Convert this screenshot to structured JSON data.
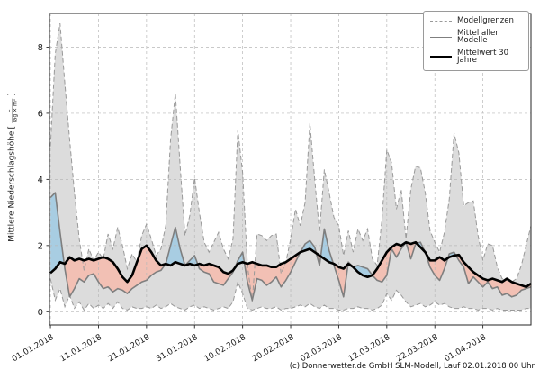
{
  "figure": {
    "footer_credit": "(c) Donnerwetter.de GmbH SLM-Modell, Lauf 02.01.2018 00 Uhr"
  },
  "legend": {
    "items": [
      {
        "label": "Modellgrenzen",
        "style": "dashed-gray"
      },
      {
        "label": "Mittel aller Modelle",
        "style": "solid-gray"
      },
      {
        "label": "Mittelwert 30 Jahre",
        "style": "solid-black"
      }
    ]
  },
  "axis": {
    "ylabel": "Mittlere Niederschlagshöhe",
    "unit_open": "[",
    "unit_numerator": "L",
    "unit_denominator": "Tag × m²",
    "unit_close": "]"
  },
  "chart_data": {
    "type": "line",
    "title": "",
    "xlabel": "",
    "ylabel": "Mittlere Niederschlagshöhe [L/(Tag × m²)]",
    "x_unit": "Tage ab 01.01.2018 (Index = Tag)",
    "x_tick_days": [
      0,
      10,
      20,
      30,
      40,
      50,
      60,
      70,
      80,
      90
    ],
    "x_tick_labels": [
      "01.01.2018",
      "11.01.2018",
      "21.01.2018",
      "31.01.2018",
      "10.02.2018",
      "20.02.2018",
      "02.03.2018",
      "12.03.2018",
      "22.03.2018",
      "01.04.2018"
    ],
    "y_ticks": [
      0,
      2,
      4,
      6,
      8
    ],
    "xlim": [
      -0.2,
      100
    ],
    "ylim": [
      -0.4,
      9.02
    ],
    "grid": true,
    "legend_position": "upper right",
    "series": [
      {
        "name": "Modellgrenze oben",
        "role": "upper_bound",
        "values": [
          5.0,
          7.8,
          8.72,
          6.9,
          5.2,
          3.6,
          2.2,
          1.25,
          1.9,
          1.55,
          1.8,
          1.6,
          2.35,
          1.9,
          2.55,
          2.0,
          1.3,
          1.75,
          1.5,
          2.3,
          2.65,
          2.2,
          1.7,
          1.9,
          2.6,
          5.2,
          6.6,
          4.4,
          2.3,
          2.9,
          4.05,
          3.0,
          2.1,
          1.8,
          2.1,
          2.4,
          1.9,
          1.6,
          2.2,
          5.5,
          4.2,
          1.4,
          0.3,
          2.35,
          2.3,
          2.15,
          2.3,
          2.35,
          1.15,
          1.5,
          2.2,
          3.1,
          2.6,
          3.3,
          5.7,
          4.0,
          2.4,
          4.3,
          3.6,
          2.85,
          2.6,
          1.7,
          2.45,
          1.8,
          2.5,
          2.15,
          2.5,
          1.6,
          1.4,
          2.8,
          4.9,
          4.5,
          3.1,
          3.7,
          2.2,
          3.7,
          4.4,
          4.35,
          3.6,
          2.45,
          2.1,
          1.8,
          2.4,
          3.4,
          5.4,
          4.8,
          3.2,
          3.3,
          3.35,
          2.3,
          1.55,
          2.05,
          2.0,
          1.35,
          1.0,
          0.95,
          0.9,
          1.0,
          1.4,
          2.0,
          2.6
        ]
      },
      {
        "name": "Modellgrenze unten",
        "role": "lower_bound",
        "values": [
          1.0,
          0.35,
          0.7,
          0.15,
          0.5,
          0.1,
          0.3,
          0.05,
          0.25,
          0.1,
          0.2,
          0.1,
          0.25,
          0.1,
          0.3,
          0.1,
          0.05,
          0.15,
          0.1,
          0.1,
          0.15,
          0.1,
          0.2,
          0.1,
          0.15,
          0.25,
          0.15,
          0.1,
          0.05,
          0.15,
          0.2,
          0.1,
          0.15,
          0.1,
          0.05,
          0.1,
          0.15,
          0.1,
          0.3,
          0.9,
          0.55,
          0.1,
          0.05,
          0.1,
          0.15,
          0.1,
          0.1,
          0.15,
          0.05,
          0.1,
          0.1,
          0.15,
          0.2,
          0.15,
          0.25,
          0.15,
          0.1,
          0.2,
          0.1,
          0.1,
          0.05,
          0.05,
          0.1,
          0.1,
          0.15,
          0.1,
          0.1,
          0.05,
          0.1,
          0.2,
          0.55,
          0.35,
          0.65,
          0.5,
          0.3,
          0.15,
          0.2,
          0.25,
          0.15,
          0.2,
          0.3,
          0.2,
          0.25,
          0.15,
          0.1,
          0.1,
          0.15,
          0.1,
          0.1,
          0.05,
          0.1,
          0.1,
          0.05,
          0.1,
          0.05,
          0.05,
          0.05,
          0.05,
          0.05,
          0.1,
          0.1
        ]
      },
      {
        "name": "Mittel aller Modelle",
        "role": "model_mean",
        "values": [
          3.45,
          3.6,
          2.4,
          1.3,
          0.45,
          0.7,
          1.0,
          0.9,
          1.1,
          1.15,
          0.9,
          0.7,
          0.75,
          0.6,
          0.7,
          0.65,
          0.55,
          0.7,
          0.8,
          0.9,
          0.95,
          1.1,
          1.2,
          1.25,
          1.45,
          2.0,
          2.55,
          1.9,
          1.4,
          1.55,
          1.7,
          1.3,
          1.2,
          1.15,
          0.9,
          0.85,
          0.8,
          1.0,
          1.2,
          1.55,
          1.8,
          0.9,
          0.35,
          1.0,
          0.95,
          0.8,
          0.9,
          1.05,
          0.75,
          0.95,
          1.2,
          1.5,
          1.8,
          2.05,
          2.15,
          1.95,
          1.4,
          2.5,
          1.85,
          1.4,
          0.95,
          0.45,
          1.5,
          1.35,
          1.4,
          1.35,
          1.3,
          1.1,
          0.95,
          0.9,
          1.1,
          1.9,
          1.65,
          1.9,
          2.1,
          1.6,
          2.05,
          2.1,
          1.8,
          1.35,
          1.1,
          0.95,
          1.3,
          1.75,
          1.8,
          1.55,
          1.35,
          0.85,
          1.05,
          0.9,
          0.75,
          0.9,
          0.7,
          0.75,
          0.5,
          0.55,
          0.45,
          0.5,
          0.65,
          0.7,
          0.75
        ]
      },
      {
        "name": "Mittelwert 30 Jahre",
        "role": "climate_mean_30y",
        "values": [
          1.17,
          1.3,
          1.5,
          1.45,
          1.65,
          1.55,
          1.6,
          1.55,
          1.6,
          1.55,
          1.6,
          1.65,
          1.6,
          1.5,
          1.3,
          1.05,
          0.9,
          1.1,
          1.5,
          1.9,
          2.0,
          1.8,
          1.55,
          1.4,
          1.45,
          1.4,
          1.5,
          1.45,
          1.4,
          1.45,
          1.4,
          1.45,
          1.4,
          1.45,
          1.4,
          1.35,
          1.2,
          1.15,
          1.25,
          1.45,
          1.5,
          1.45,
          1.5,
          1.45,
          1.4,
          1.4,
          1.35,
          1.35,
          1.45,
          1.5,
          1.6,
          1.7,
          1.8,
          1.85,
          1.9,
          1.8,
          1.7,
          1.6,
          1.5,
          1.45,
          1.35,
          1.3,
          1.45,
          1.35,
          1.2,
          1.1,
          1.05,
          1.1,
          1.3,
          1.55,
          1.8,
          1.95,
          2.05,
          2.0,
          2.1,
          2.05,
          2.1,
          1.95,
          1.8,
          1.55,
          1.55,
          1.65,
          1.55,
          1.65,
          1.7,
          1.72,
          1.5,
          1.35,
          1.2,
          1.1,
          1.0,
          0.95,
          1.0,
          0.95,
          0.9,
          1.0,
          0.9,
          0.85,
          0.8,
          0.75,
          0.85
        ]
      }
    ],
    "colors": {
      "band_fill": "#dcdcdc",
      "band_edge": "#999999",
      "model_mean_line": "#7f7f7f",
      "mean30_line": "#000000",
      "above_fill": "#a8cde2",
      "below_fill": "#f2c0b4",
      "grid": "#b8b8b8",
      "spine": "#262626"
    }
  }
}
